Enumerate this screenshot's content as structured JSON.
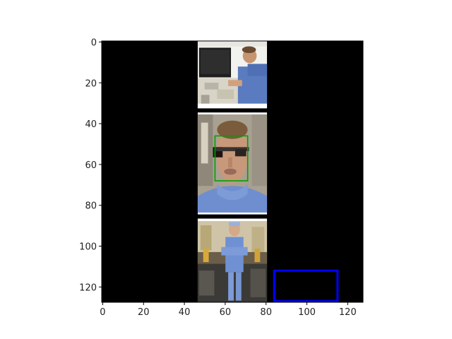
{
  "figure": {
    "background": "#ffffff",
    "image_background": "#000000",
    "axis_color": "#000000",
    "x_ticks": [
      {
        "value": 0,
        "label": "0"
      },
      {
        "value": 20,
        "label": "20"
      },
      {
        "value": 40,
        "label": "40"
      },
      {
        "value": 60,
        "label": "60"
      },
      {
        "value": 80,
        "label": "80"
      },
      {
        "value": 100,
        "label": "100"
      },
      {
        "value": 120,
        "label": "120"
      }
    ],
    "y_ticks": [
      {
        "value": 0,
        "label": "0"
      },
      {
        "value": 20,
        "label": "20"
      },
      {
        "value": 40,
        "label": "40"
      },
      {
        "value": 60,
        "label": "60"
      },
      {
        "value": 80,
        "label": "80"
      },
      {
        "value": 100,
        "label": "100"
      },
      {
        "value": 120,
        "label": "120"
      }
    ],
    "x_range": [
      -0.5,
      127.5
    ],
    "y_range": [
      127.5,
      -0.5
    ],
    "panels": [
      {
        "name": "panel-surgeon-at-monitor",
        "description": "man in blue scrubs at a workstation with monitor",
        "x0": 47,
        "x1": 80,
        "y0": 0,
        "y1": 32
      },
      {
        "name": "panel-closeup-face",
        "description": "close-up of a man's face wearing glasses, blue scrubs",
        "x0": 47,
        "x1": 80,
        "y0": 35,
        "y1": 84
      },
      {
        "name": "panel-standing-surgeon",
        "description": "surgeon in scrubs standing with arms crossed in an operating room",
        "x0": 47,
        "x1": 80,
        "y0": 87,
        "y1": 127
      }
    ],
    "boxes": [
      {
        "name": "face-bounding-box",
        "color": "#00a000",
        "x0": 55,
        "y0": 46,
        "x1": 71,
        "y1": 68
      },
      {
        "name": "blue-bounding-box",
        "color": "#0000ff",
        "x0": 84,
        "y0": 112,
        "x1": 115,
        "y1": 127
      }
    ]
  }
}
